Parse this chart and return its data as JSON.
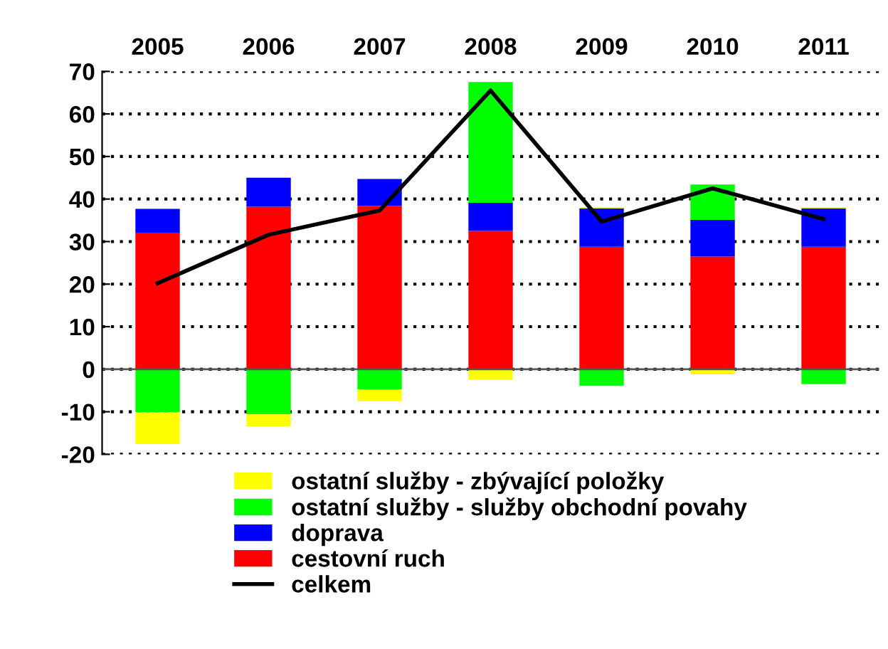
{
  "chart_data": {
    "type": "bar",
    "stacked": true,
    "categories": [
      "2005",
      "2006",
      "2007",
      "2008",
      "2009",
      "2010",
      "2011"
    ],
    "series": [
      {
        "name": "cestovní ruch",
        "color": "#ff0000",
        "values": [
          32.1,
          38.2,
          38.4,
          32.5,
          28.8,
          26.5,
          28.8
        ]
      },
      {
        "name": "doprava",
        "color": "#0000ff",
        "values": [
          5.6,
          6.8,
          6.3,
          6.6,
          9.0,
          8.6,
          9.0
        ]
      },
      {
        "name": "ostatní služby - služby obchodní povahy",
        "color": "#00ff00",
        "values": [
          -10.1,
          -10.6,
          -4.8,
          28.4,
          -3.9,
          8.3,
          -3.5
        ]
      },
      {
        "name": "ostatní služby - zbývající položky",
        "color": "#ffff00",
        "values": [
          -7.5,
          -2.8,
          -2.7,
          -2.5,
          0.3,
          -1.2,
          0.3
        ]
      },
      {
        "name": "celkem",
        "type": "line",
        "color": "#000000",
        "values": [
          20.2,
          31.6,
          37.3,
          65.5,
          34.7,
          42.5,
          35.3
        ]
      }
    ],
    "ylim": [
      -20,
      70
    ],
    "yticks": [
      -20,
      -10,
      0,
      10,
      20,
      30,
      40,
      50,
      60,
      70
    ],
    "grid": "y",
    "legend": "bottom",
    "marker": "none",
    "line_style": "solid"
  }
}
